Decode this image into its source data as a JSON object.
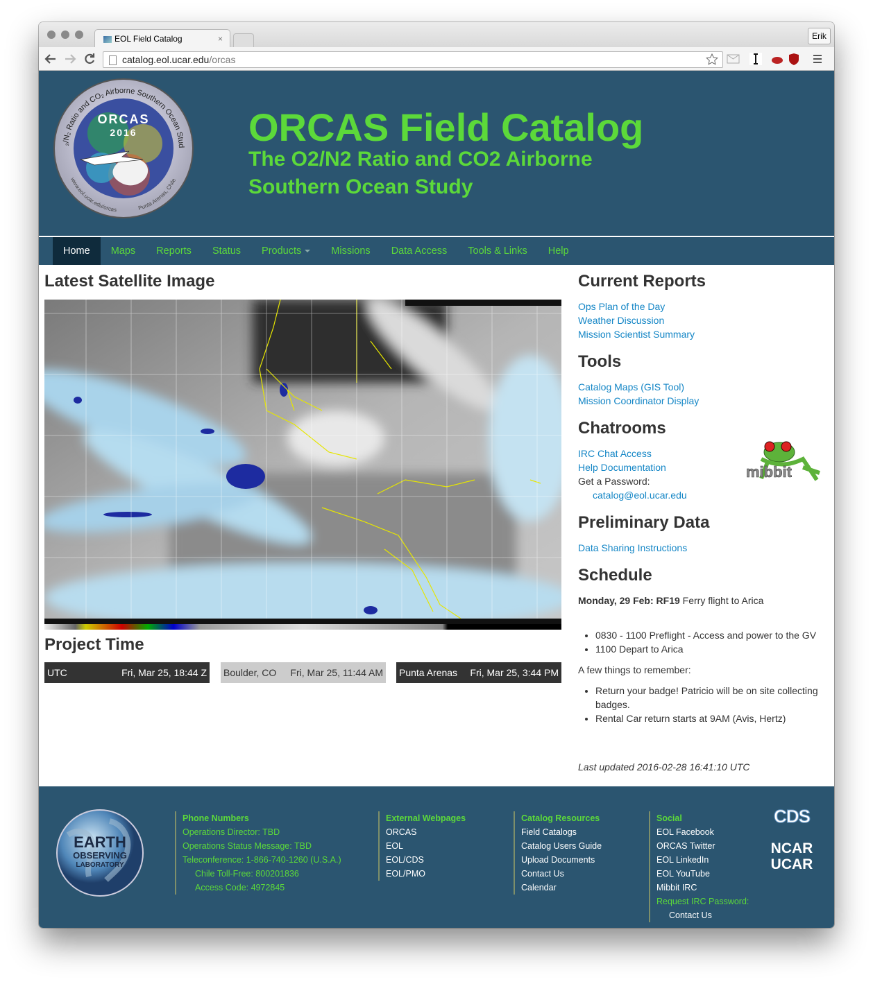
{
  "browser": {
    "tab_title": "EOL Field Catalog",
    "user": "Erik",
    "url_host": "catalog.eol.ucar.edu",
    "url_path": "/orcas"
  },
  "header": {
    "logo": {
      "ring_top": "O₂/N₂ Ratio and CO₂ Airborne Southern Ocean Study",
      "name": "ORCAS",
      "year": "2016",
      "ring_left": "www.eol.ucar.edu/orcas",
      "ring_right": "Punta Arenas, Chile"
    },
    "title": "ORCAS Field Catalog",
    "subtitle": "The O2/N2 Ratio and CO2 Airborne Southern Ocean Study"
  },
  "nav": [
    "Home",
    "Maps",
    "Reports",
    "Status",
    "Products",
    "Missions",
    "Data Access",
    "Tools & Links",
    "Help"
  ],
  "satellite": {
    "heading": "Latest Satellite Image"
  },
  "project_time": {
    "heading": "Project Time",
    "clocks": [
      {
        "zone": "UTC",
        "time": "Fri, Mar 25, 18:44 Z"
      },
      {
        "zone": "Boulder, CO",
        "time": "Fri, Mar 25, 11:44 AM"
      },
      {
        "zone": "Punta Arenas",
        "time": "Fri, Mar 25, 3:44 PM"
      }
    ]
  },
  "sidebar": {
    "current_reports": {
      "heading": "Current Reports",
      "links": [
        "Ops Plan of the Day",
        "Weather Discussion",
        "Mission Scientist Summary"
      ]
    },
    "tools": {
      "heading": "Tools",
      "links": [
        "Catalog Maps (GIS Tool)",
        "Mission Coordinator Display"
      ]
    },
    "chatrooms": {
      "heading": "Chatrooms",
      "links": [
        "IRC Chat Access",
        "Help Documentation"
      ],
      "password_label": "Get a Password:",
      "email": "catalog@eol.ucar.edu",
      "logo_text": "mibbit"
    },
    "preliminary_data": {
      "heading": "Preliminary Data",
      "links": [
        "Data Sharing Instructions"
      ]
    },
    "schedule": {
      "heading": "Schedule",
      "day": "Monday, 29 Feb: RF19",
      "day_text": "Ferry flight to Arica",
      "items": [
        "0830 - 1100 Preflight - Access and power to the GV",
        "1100 Depart to Arica"
      ],
      "reminder_intro": "A few things to remember:",
      "reminders": [
        "Return your badge! Patricio will be on site collecting badges.",
        "Rental Car return starts at 9AM (Avis, Hertz)"
      ],
      "last_updated": "Last updated 2016-02-28 16:41:10 UTC"
    }
  },
  "footer": {
    "eol_logo": [
      "EARTH",
      "OBSERVING",
      "LABORATORY"
    ],
    "phone": {
      "heading": "Phone Numbers",
      "lines": [
        "Operations Director: TBD",
        "Operations Status Message: TBD",
        "Teleconference: 1-866-740-1260 (U.S.A.)"
      ],
      "sub_lines": [
        "Chile Toll-Free: 800201836",
        "Access Code: 4972845"
      ]
    },
    "external": {
      "heading": "External Webpages",
      "links": [
        "ORCAS",
        "EOL",
        "EOL/CDS",
        "EOL/PMO"
      ]
    },
    "catalog": {
      "heading": "Catalog Resources",
      "links": [
        "Field Catalogs",
        "Catalog Users Guide",
        "Upload Documents",
        "Contact Us",
        "Calendar"
      ]
    },
    "social": {
      "heading": "Social",
      "links": [
        "EOL Facebook",
        "ORCAS Twitter",
        "EOL LinkedIn",
        "EOL YouTube",
        "Mibbit IRC"
      ],
      "request_label": "Request IRC Password:",
      "request_link": "Contact Us"
    },
    "org_logos": [
      "CDS",
      "NCAR",
      "UCAR"
    ]
  }
}
